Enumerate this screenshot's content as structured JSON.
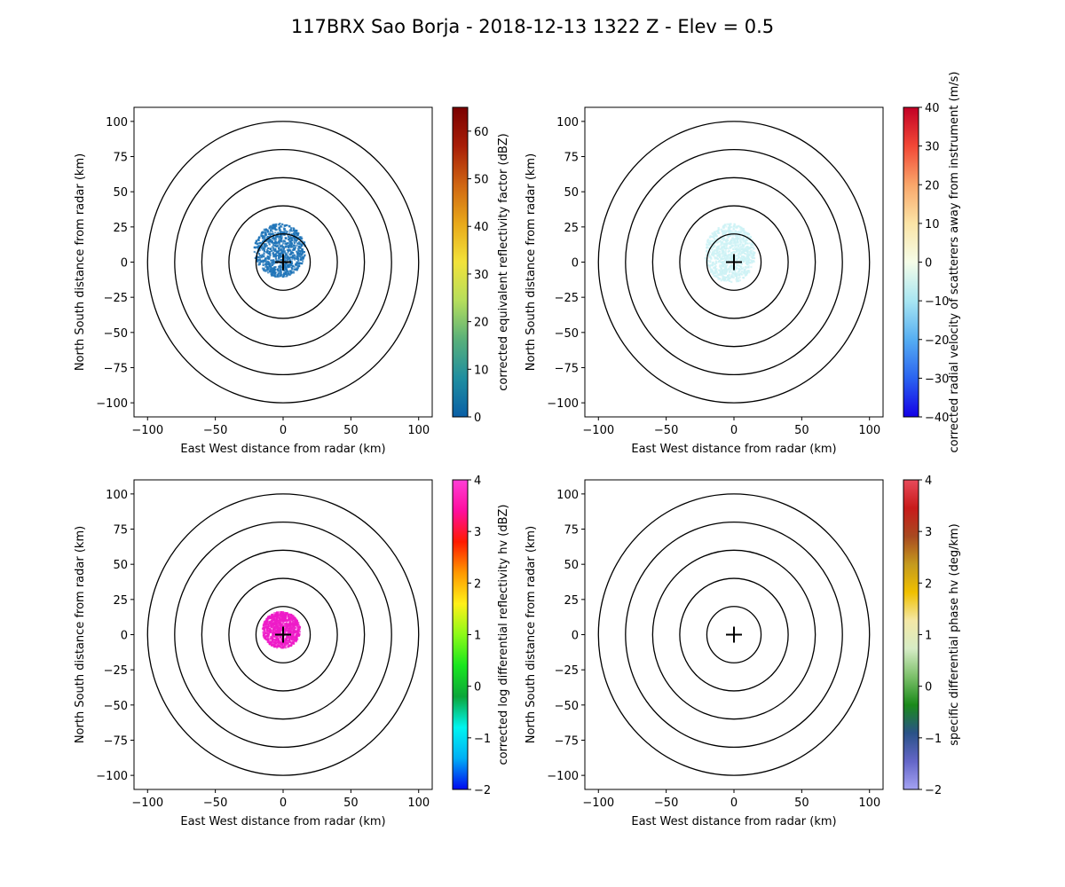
{
  "figure": {
    "title": "117BRX Sao Borja - 2018-12-13 1322 Z -  Elev = 0.5"
  },
  "chart_data": [
    {
      "type": "ppi",
      "xlabel": "East West distance from radar (km)",
      "ylabel": "North South distance from radar (km)",
      "xlim": [
        -110,
        110
      ],
      "ylim": [
        -110,
        110
      ],
      "x_ticks": [
        -100,
        -50,
        0,
        50,
        100
      ],
      "y_ticks": [
        -100,
        -75,
        -50,
        -25,
        0,
        25,
        50,
        75,
        100
      ],
      "range_rings_km": [
        20,
        40,
        60,
        80,
        100
      ],
      "colorbar": {
        "label": "corrected equivalent reflectivity factor (dBZ)",
        "min": 0,
        "max": 65,
        "ticks": [
          0,
          10,
          20,
          30,
          40,
          50,
          60
        ],
        "cmap": [
          "#0a5fa6",
          "#1f8ea0",
          "#59b07a",
          "#b5de5c",
          "#f2e23a",
          "#e8a81a",
          "#cf6512",
          "#a81e08",
          "#7a0000"
        ]
      },
      "echo": {
        "color": "#1f74b8",
        "extent_km": {
          "west": -22,
          "east": 16,
          "south": -10,
          "north": 28
        }
      }
    },
    {
      "type": "ppi",
      "xlabel": "East West distance from radar (km)",
      "ylabel": "North South distance from radar (km)",
      "xlim": [
        -110,
        110
      ],
      "ylim": [
        -110,
        110
      ],
      "x_ticks": [
        -100,
        -50,
        0,
        50,
        100
      ],
      "y_ticks": [
        -100,
        -75,
        -50,
        -25,
        0,
        25,
        50,
        75,
        100
      ],
      "range_rings_km": [
        20,
        40,
        60,
        80,
        100
      ],
      "colorbar": {
        "label": "corrected radial velocity of scatterers away from instrument (m/s)",
        "min": -40,
        "max": 40,
        "ticks": [
          -40,
          -30,
          -20,
          -10,
          0,
          10,
          20,
          30,
          40
        ],
        "cmap": [
          "#1400e6",
          "#2a63f0",
          "#56aef2",
          "#a8e6f2",
          "#f5fde8",
          "#fbe4a6",
          "#f9a66a",
          "#f24836",
          "#c20026"
        ]
      },
      "echo": {
        "color": "#cdf2f5",
        "extent_km": {
          "west": -22,
          "east": 15,
          "south": -14,
          "north": 28
        }
      }
    },
    {
      "type": "ppi",
      "xlabel": "East West distance from radar (km)",
      "ylabel": "North South distance from radar (km)",
      "xlim": [
        -110,
        110
      ],
      "ylim": [
        -110,
        110
      ],
      "x_ticks": [
        -100,
        -50,
        0,
        50,
        100
      ],
      "y_ticks": [
        -100,
        -75,
        -50,
        -25,
        0,
        25,
        50,
        75,
        100
      ],
      "range_rings_km": [
        20,
        40,
        60,
        80,
        100
      ],
      "colorbar": {
        "label": "corrected log differential reflectivity hv (dBZ)",
        "min": -2,
        "max": 4,
        "ticks": [
          -2,
          -1,
          0,
          1,
          2,
          3,
          4
        ],
        "cmap": [
          "#0008f0",
          "#00aef5",
          "#00f5f0",
          "#0ca63a",
          "#19e61f",
          "#8cfa18",
          "#fff018",
          "#ff9800",
          "#ff1a00",
          "#ff0d9e",
          "#ff3fd6"
        ]
      },
      "echo": {
        "color": "#ee1bc8",
        "extent_km": {
          "west": -16,
          "east": 12,
          "south": -9,
          "north": 17
        }
      }
    },
    {
      "type": "ppi",
      "xlabel": "East West distance from radar (km)",
      "ylabel": "North South distance from radar (km)",
      "xlim": [
        -110,
        110
      ],
      "ylim": [
        -110,
        110
      ],
      "x_ticks": [
        -100,
        -50,
        0,
        50,
        100
      ],
      "y_ticks": [
        -100,
        -75,
        -50,
        -25,
        0,
        25,
        50,
        75,
        100
      ],
      "range_rings_km": [
        20,
        40,
        60,
        80,
        100
      ],
      "colorbar": {
        "label": "specific differential phase hv (deg/km)",
        "min": -2,
        "max": 4,
        "ticks": [
          -2,
          -1,
          0,
          1,
          2,
          3,
          4
        ],
        "cmap": [
          "#a4a2f2",
          "#6466c8",
          "#2a5288",
          "#1a8a1a",
          "#7cc06a",
          "#d6ecc6",
          "#f4e8a6",
          "#f0c000",
          "#c49a1e",
          "#a84a20",
          "#c81a1a",
          "#e84a5a"
        ]
      },
      "echo": null
    }
  ]
}
